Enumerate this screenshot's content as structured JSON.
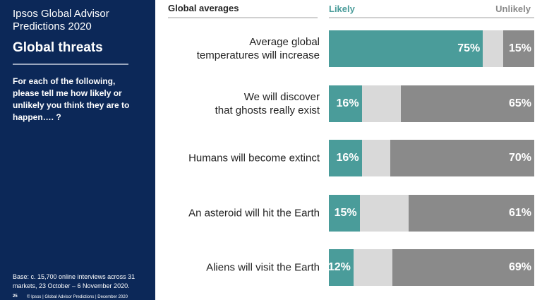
{
  "panel": {
    "title": "Ipsos Global Advisor\nPredictions 2020",
    "heading": "Global threats",
    "question": "For each of the following,\nplease tell me how likely or\nunlikely you think they are to\nhappen…. ?",
    "base": "Base: c. 15,700 online interviews across 31\nmarkets,  23 October – 6 November 2020.",
    "page_number": "25",
    "footer": "© Ipsos | Global Advisor Predictions | December 2020"
  },
  "chart_data": {
    "type": "stacked-bar",
    "orientation": "horizontal",
    "title": "Global averages",
    "categories": [
      "Average global\ntemperatures will increase",
      "We will discover\nthat ghosts really exist",
      "Humans will become extinct",
      "An asteroid will hit the Earth",
      "Aliens will visit the Earth"
    ],
    "xlim": [
      0,
      100
    ],
    "series": [
      {
        "name": "Likely",
        "color": "#4a9c9a",
        "values": [
          75,
          16,
          16,
          15,
          12
        ],
        "value_labels": [
          "75%",
          "16%",
          "16%",
          "15%",
          "12%"
        ]
      },
      {
        "color": "#d9d9d9",
        "values": [
          10,
          19,
          14,
          24,
          19
        ]
      },
      {
        "name": "Unlikely",
        "color": "#8a8a8a",
        "values": [
          15,
          65,
          70,
          61,
          69
        ],
        "value_labels": [
          "15%",
          "65%",
          "70%",
          "61%",
          "69%"
        ]
      }
    ]
  }
}
